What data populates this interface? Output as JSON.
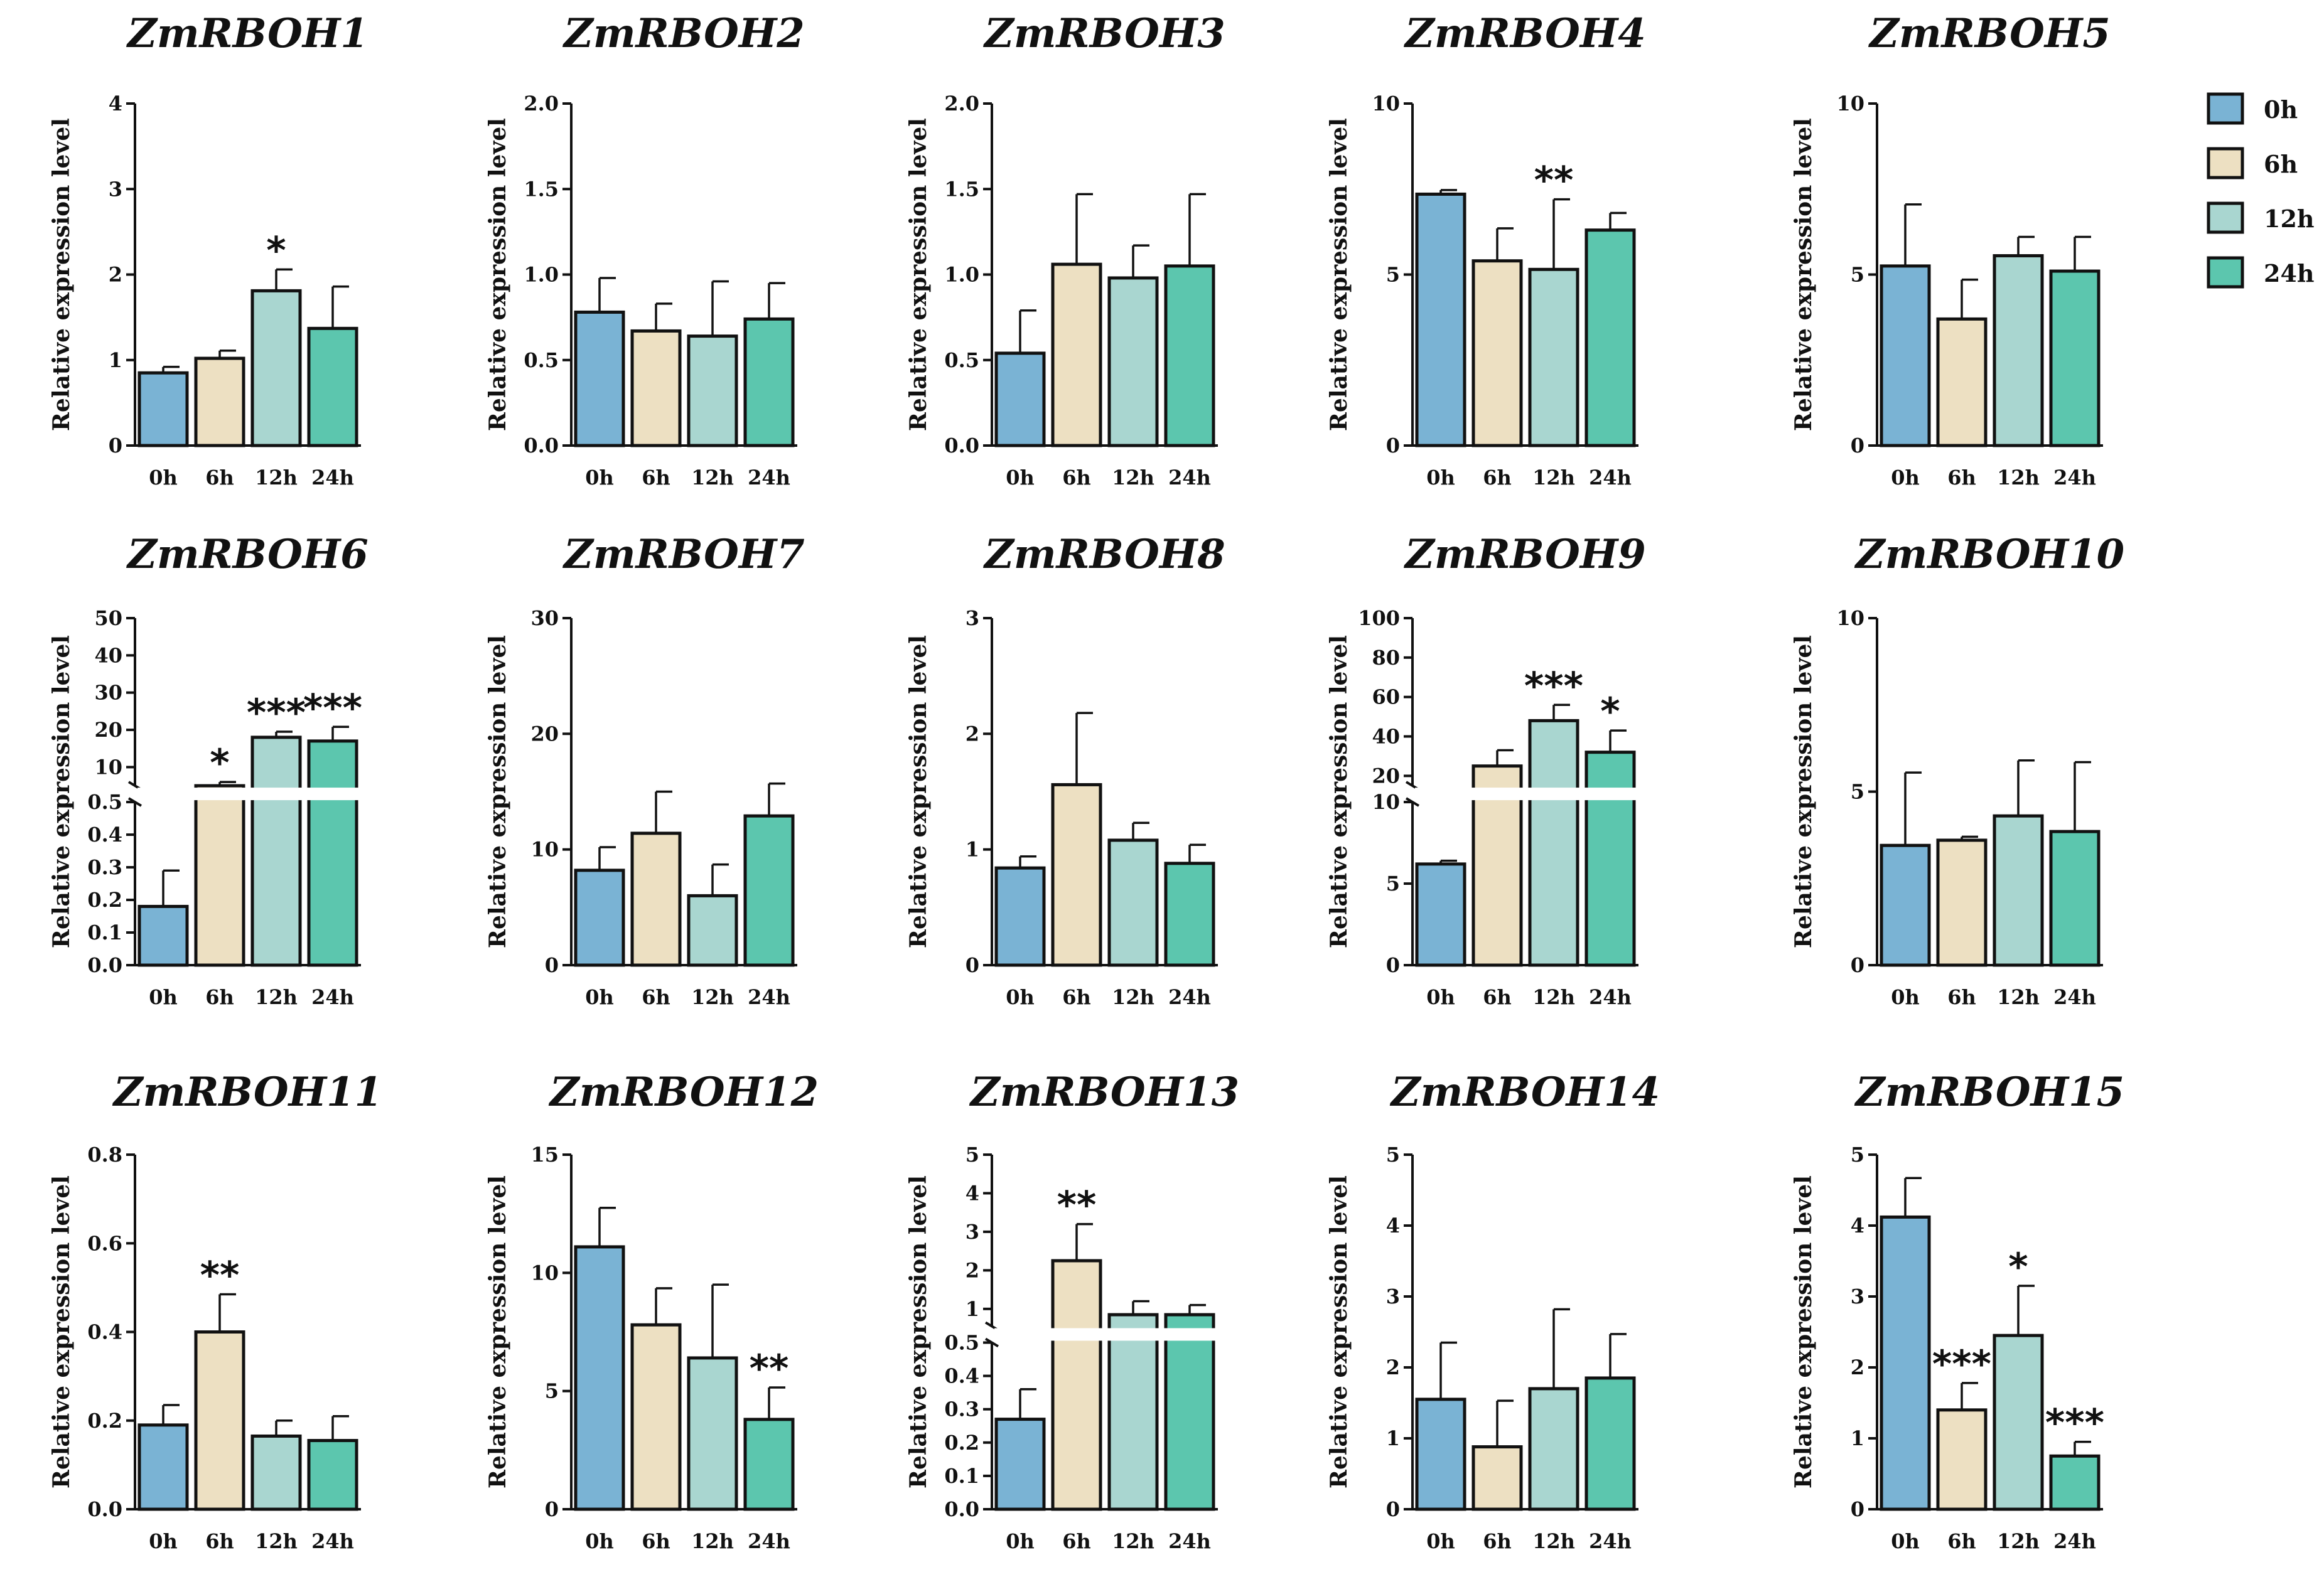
{
  "legend": {
    "position": "top-right",
    "items": [
      {
        "label": "0h",
        "color": "#7ab3d4"
      },
      {
        "label": "6h",
        "color": "#ede0c2"
      },
      {
        "label": "12h",
        "color": "#a9d6d0"
      },
      {
        "label": "24h",
        "color": "#5cc6ae"
      }
    ]
  },
  "chart_data": [
    {
      "type": "bar",
      "title": "ZmRBOH1",
      "ylabel": "Relative expression level",
      "categories": [
        "0h",
        "6h",
        "12h",
        "24h"
      ],
      "values": [
        0.85,
        1.02,
        1.81,
        1.37
      ],
      "errors": [
        0.07,
        0.09,
        0.25,
        0.49
      ],
      "significance": [
        "",
        "",
        "*",
        ""
      ],
      "ylim": [
        0,
        4
      ],
      "yticks": [
        "0",
        "1",
        "2",
        "3",
        "4"
      ]
    },
    {
      "type": "bar",
      "title": "ZmRBOH2",
      "ylabel": "Relative expression level",
      "categories": [
        "0h",
        "6h",
        "12h",
        "24h"
      ],
      "values": [
        0.78,
        0.67,
        0.64,
        0.74
      ],
      "errors": [
        0.2,
        0.16,
        0.32,
        0.21
      ],
      "significance": [
        "",
        "",
        "",
        ""
      ],
      "ylim": [
        0,
        2
      ],
      "yticks": [
        "0.0",
        "0.5",
        "1.0",
        "1.5",
        "2.0"
      ]
    },
    {
      "type": "bar",
      "title": "ZmRBOH3",
      "ylabel": "Relative expression level",
      "categories": [
        "0h",
        "6h",
        "12h",
        "24h"
      ],
      "values": [
        0.54,
        1.06,
        0.98,
        1.05
      ],
      "errors": [
        0.25,
        0.41,
        0.19,
        0.42
      ],
      "significance": [
        "",
        "",
        "",
        ""
      ],
      "ylim": [
        0,
        2
      ],
      "yticks": [
        "0.0",
        "0.5",
        "1.0",
        "1.5",
        "2.0"
      ]
    },
    {
      "type": "bar",
      "title": "ZmRBOH4",
      "ylabel": "Relative expression level",
      "categories": [
        "0h",
        "6h",
        "12h",
        "24h"
      ],
      "values": [
        7.35,
        5.4,
        5.15,
        6.3
      ],
      "errors": [
        0.12,
        0.95,
        2.05,
        0.5
      ],
      "significance": [
        "",
        "",
        "**",
        ""
      ],
      "ylim": [
        0,
        10
      ],
      "yticks": [
        "0",
        "5",
        "10"
      ]
    },
    {
      "type": "bar",
      "title": "ZmRBOH5",
      "ylabel": "Relative expression level",
      "categories": [
        "0h",
        "6h",
        "12h",
        "24h"
      ],
      "values": [
        5.25,
        3.7,
        5.55,
        5.1
      ],
      "errors": [
        1.8,
        1.15,
        0.55,
        1.0
      ],
      "significance": [
        "",
        "",
        "",
        ""
      ],
      "ylim": [
        0,
        10
      ],
      "yticks": [
        "0",
        "5",
        "10"
      ]
    },
    {
      "type": "bar",
      "title": "ZmRBOH6",
      "ylabel": "Relative expression level",
      "categories": [
        "0h",
        "6h",
        "12h",
        "24h"
      ],
      "values": [
        0.18,
        5.0,
        18.0,
        17.0
      ],
      "errors": [
        0.11,
        1.0,
        1.5,
        3.8
      ],
      "significance": [
        "",
        "*",
        "***",
        "***"
      ],
      "ylim": [
        0,
        50
      ],
      "axis_break": {
        "lower": [
          0,
          0.5
        ],
        "upper": [
          5,
          50
        ]
      },
      "yticks_lower": [
        "0.0",
        "0.1",
        "0.2",
        "0.3",
        "0.4",
        "0.5"
      ],
      "yticks_upper": [
        "10",
        "20",
        "30",
        "40",
        "50"
      ]
    },
    {
      "type": "bar",
      "title": "ZmRBOH7",
      "ylabel": "Relative expression level",
      "categories": [
        "0h",
        "6h",
        "12h",
        "24h"
      ],
      "values": [
        8.2,
        11.4,
        6.0,
        12.9
      ],
      "errors": [
        2.0,
        3.6,
        2.7,
        2.8
      ],
      "significance": [
        "",
        "",
        "",
        ""
      ],
      "ylim": [
        0,
        30
      ],
      "yticks": [
        "0",
        "10",
        "20",
        "30"
      ]
    },
    {
      "type": "bar",
      "title": "ZmRBOH8",
      "ylabel": "Relative expression level",
      "categories": [
        "0h",
        "6h",
        "12h",
        "24h"
      ],
      "values": [
        0.84,
        1.56,
        1.08,
        0.88
      ],
      "errors": [
        0.1,
        0.62,
        0.15,
        0.16
      ],
      "significance": [
        "",
        "",
        "",
        ""
      ],
      "ylim": [
        0,
        3
      ],
      "yticks": [
        "0",
        "1",
        "2",
        "3"
      ]
    },
    {
      "type": "bar",
      "title": "ZmRBOH9",
      "ylabel": "Relative expression level",
      "categories": [
        "0h",
        "6h",
        "12h",
        "24h"
      ],
      "values": [
        6.2,
        25.0,
        48.0,
        32.0
      ],
      "errors": [
        0.2,
        8.0,
        8.0,
        11.0
      ],
      "significance": [
        "",
        "",
        "***",
        "*"
      ],
      "ylim": [
        0,
        100
      ],
      "axis_break": {
        "lower": [
          0,
          10
        ],
        "upper": [
          15,
          100
        ]
      },
      "yticks_lower": [
        "0",
        "5",
        "10"
      ],
      "yticks_upper": [
        "20",
        "40",
        "60",
        "80",
        "100"
      ]
    },
    {
      "type": "bar",
      "title": "ZmRBOH10",
      "ylabel": "Relative expression level",
      "categories": [
        "0h",
        "6h",
        "12h",
        "24h"
      ],
      "values": [
        3.45,
        3.6,
        4.3,
        3.85
      ],
      "errors": [
        2.1,
        0.1,
        1.6,
        2.0
      ],
      "significance": [
        "",
        "",
        "",
        ""
      ],
      "ylim": [
        0,
        10
      ],
      "yticks": [
        "0",
        "5",
        "10"
      ]
    },
    {
      "type": "bar",
      "title": "ZmRBOH11",
      "ylabel": "Relative expression level",
      "categories": [
        "0h",
        "6h",
        "12h",
        "24h"
      ],
      "values": [
        0.19,
        0.4,
        0.165,
        0.155
      ],
      "errors": [
        0.045,
        0.085,
        0.035,
        0.055
      ],
      "significance": [
        "",
        "**",
        "",
        ""
      ],
      "ylim": [
        0,
        0.8
      ],
      "yticks": [
        "0.0",
        "0.2",
        "0.4",
        "0.6",
        "0.8"
      ]
    },
    {
      "type": "bar",
      "title": "ZmRBOH12",
      "ylabel": "Relative expression level",
      "categories": [
        "0h",
        "6h",
        "12h",
        "24h"
      ],
      "values": [
        11.1,
        7.8,
        6.4,
        3.8
      ],
      "errors": [
        1.65,
        1.55,
        3.1,
        1.35
      ],
      "significance": [
        "",
        "",
        "",
        "**"
      ],
      "ylim": [
        0,
        15
      ],
      "yticks": [
        "0",
        "5",
        "10",
        "15"
      ]
    },
    {
      "type": "bar",
      "title": "ZmRBOH13",
      "ylabel": "Relative expression level",
      "categories": [
        "0h",
        "6h",
        "12h",
        "24h"
      ],
      "values": [
        0.27,
        2.25,
        0.85,
        0.85
      ],
      "errors": [
        0.09,
        0.95,
        0.35,
        0.25
      ],
      "significance": [
        "",
        "**",
        "",
        ""
      ],
      "ylim": [
        0,
        5
      ],
      "axis_break": {
        "lower": [
          0,
          0.5
        ],
        "upper": [
          0.55,
          5
        ]
      },
      "yticks_lower": [
        "0.0",
        "0.1",
        "0.2",
        "0.3",
        "0.4",
        "0.5"
      ],
      "yticks_upper": [
        "1",
        "2",
        "3",
        "4",
        "5"
      ]
    },
    {
      "type": "bar",
      "title": "ZmRBOH14",
      "ylabel": "Relative expression level",
      "categories": [
        "0h",
        "6h",
        "12h",
        "24h"
      ],
      "values": [
        1.55,
        0.88,
        1.7,
        1.85
      ],
      "errors": [
        0.8,
        0.65,
        1.12,
        0.62
      ],
      "significance": [
        "",
        "",
        "",
        ""
      ],
      "ylim": [
        0,
        5
      ],
      "yticks": [
        "0",
        "1",
        "2",
        "3",
        "4",
        "5"
      ]
    },
    {
      "type": "bar",
      "title": "ZmRBOH15",
      "ylabel": "Relative expression level",
      "categories": [
        "0h",
        "6h",
        "12h",
        "24h"
      ],
      "values": [
        4.12,
        1.4,
        2.45,
        0.75
      ],
      "errors": [
        0.55,
        0.38,
        0.7,
        0.2
      ],
      "significance": [
        "",
        "***",
        "*",
        "***"
      ],
      "ylim": [
        0,
        5
      ],
      "yticks": [
        "0",
        "1",
        "2",
        "3",
        "4",
        "5"
      ]
    }
  ]
}
